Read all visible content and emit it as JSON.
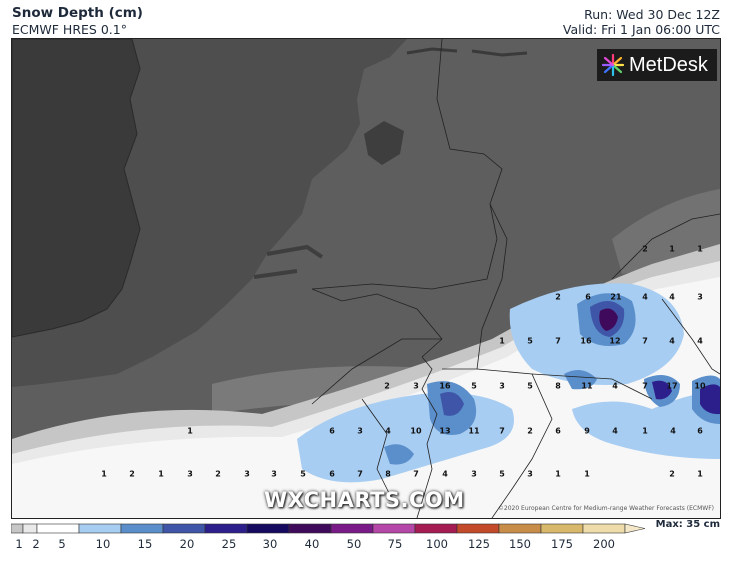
{
  "header": {
    "title": "Snow Depth (cm)",
    "subtitle": "ECMWF HRES 0.1°",
    "run": "Run: Wed 30 Dec 12Z",
    "valid": "Valid: Fri 1 Jan 06:00 UTC"
  },
  "logo": {
    "text": "MetDesk",
    "icon": "metdesk-starburst-icon"
  },
  "watermark": "WXCHARTS.COM",
  "credit": "©2020 European Centre for Medium-range Weather Forecasts (ECMWF)",
  "legend": {
    "max_label": "Max: 35 cm",
    "levels": [
      "1",
      "2",
      "5",
      "10",
      "15",
      "20",
      "25",
      "30",
      "40",
      "50",
      "75",
      "100",
      "125",
      "150",
      "175",
      "200"
    ],
    "colors": [
      "#c6c6c6",
      "#e9e9e9",
      "#ffffff",
      "#a8cdf2",
      "#5b8fcb",
      "#3f55a8",
      "#2c1f8c",
      "#150a60",
      "#3f0a5c",
      "#7a1a88",
      "#b447a8",
      "#a41c52",
      "#c34a2a",
      "#c98d4a",
      "#d8b86a",
      "#eedcaa"
    ]
  },
  "map_values": [
    "2",
    "1",
    "1",
    "2",
    "6",
    "21",
    "4",
    "4",
    "3",
    "1",
    "5",
    "7",
    "16",
    "12",
    "7",
    "4",
    "4",
    "2",
    "3",
    "16",
    "5",
    "3",
    "5",
    "8",
    "11",
    "4",
    "7",
    "17",
    "10",
    "1",
    "6",
    "3",
    "4",
    "10",
    "13",
    "11",
    "7",
    "2",
    "6",
    "9",
    "4",
    "1",
    "4",
    "6",
    "1",
    "2",
    "1",
    "3",
    "2",
    "3",
    "3",
    "5",
    "6",
    "7",
    "8",
    "7",
    "4",
    "3",
    "5",
    "3",
    "1",
    "1",
    "2",
    "1"
  ]
}
